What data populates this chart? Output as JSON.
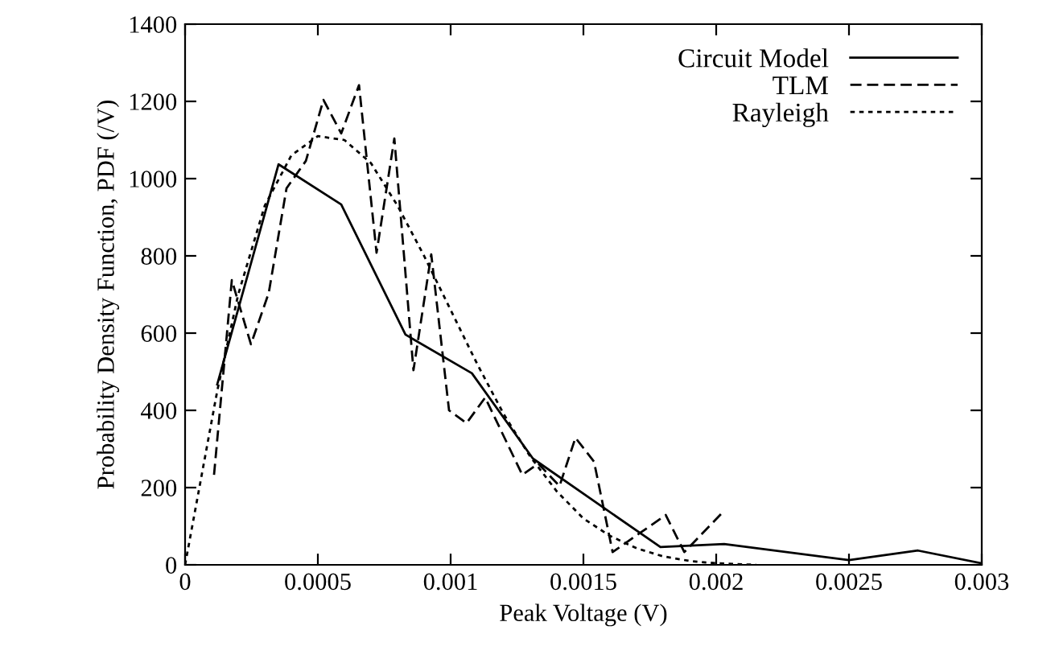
{
  "chart_data": {
    "type": "line",
    "xlabel": "Peak Voltage (V)",
    "ylabel": "Probability Density Function, PDF (/V)",
    "xlim": [
      0,
      0.003
    ],
    "ylim": [
      0,
      1400
    ],
    "xticks": [
      0,
      0.0005,
      0.001,
      0.0015,
      0.002,
      0.0025,
      0.003
    ],
    "yticks": [
      0,
      200,
      400,
      600,
      800,
      1000,
      1200,
      1400
    ],
    "grid": false,
    "legend": "top right",
    "marker": "none",
    "series": [
      {
        "name": "Circuit Model",
        "color": "#000000",
        "line_style": "solid",
        "x": [
          0.000121,
          0.000352,
          0.000588,
          0.00083,
          0.00108,
          0.00131,
          0.00179,
          0.00203,
          0.0025,
          0.00276,
          0.003
        ],
        "values": [
          467,
          1037,
          933,
          596,
          496,
          275,
          46,
          54,
          12,
          37,
          4
        ]
      },
      {
        "name": "TLM",
        "color": "#000000",
        "line_style": "dashed",
        "x": [
          0.000109,
          0.000176,
          0.000248,
          0.000315,
          0.000382,
          0.000455,
          0.000521,
          0.000588,
          0.000655,
          0.000721,
          0.000788,
          0.00086,
          0.000927,
          0.000994,
          0.00106,
          0.00113,
          0.00127,
          0.00133,
          0.00141,
          0.00147,
          0.00154,
          0.00161,
          0.00181,
          0.00188,
          0.00202
        ],
        "values": [
          233,
          737,
          571,
          704,
          975,
          1046,
          1204,
          1117,
          1242,
          808,
          1104,
          504,
          804,
          400,
          367,
          433,
          233,
          262,
          204,
          329,
          267,
          33,
          129,
          33,
          133
        ]
      },
      {
        "name": "Rayleigh",
        "color": "#000000",
        "line_style": "dotted",
        "x": [
          0,
          0.000121,
          0.0002,
          0.0003,
          0.0004,
          0.0005,
          0.0006,
          0.0007,
          0.0008,
          0.0009,
          0.001,
          0.0011,
          0.0012,
          0.0013,
          0.0014,
          0.0015,
          0.0016,
          0.0017,
          0.0018,
          0.0019,
          0.002,
          0.00215
        ],
        "values": [
          0,
          450,
          700,
          930,
          1060,
          1110,
          1100,
          1040,
          930,
          800,
          660,
          520,
          390,
          280,
          190,
          120,
          75,
          43,
          22,
          10,
          4,
          0
        ]
      }
    ]
  }
}
